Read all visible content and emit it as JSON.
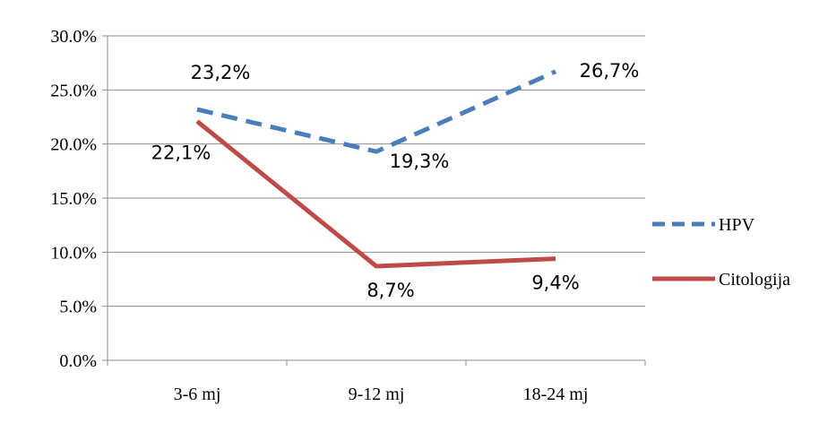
{
  "chart_data": {
    "type": "line",
    "categories": [
      "3-6 mj",
      "9-12 mj",
      "18-24 mj"
    ],
    "series": [
      {
        "name": "HPV",
        "values": [
          23.2,
          19.3,
          26.7
        ],
        "labels": [
          "23,2%",
          "19,3%",
          "26,7%"
        ],
        "color": "#4a7ebb",
        "style": "dashed"
      },
      {
        "name": "Citologija",
        "values": [
          22.1,
          8.7,
          9.4
        ],
        "labels": [
          "22,1%",
          "8,7%",
          "9,4%"
        ],
        "color": "#be4b48",
        "style": "solid"
      }
    ],
    "yticks": [
      "0.0%",
      "5.0%",
      "10.0%",
      "15.0%",
      "20.0%",
      "25.0%",
      "30.0%"
    ],
    "ylim": [
      0,
      30
    ],
    "grid": true,
    "legend": "right",
    "title": "",
    "xlabel": "",
    "ylabel": ""
  }
}
